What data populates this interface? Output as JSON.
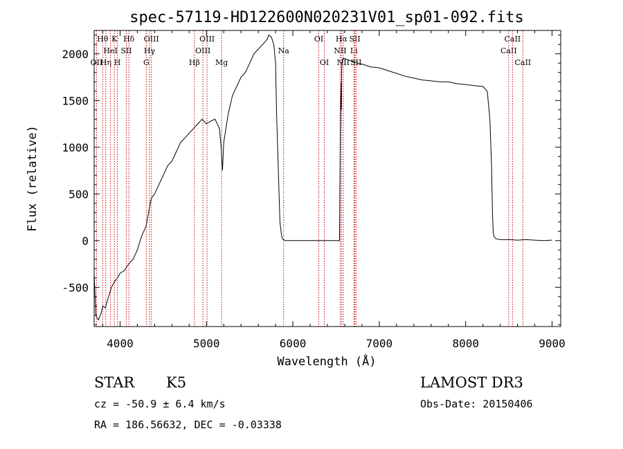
{
  "chart_data": {
    "type": "line",
    "title": "spec-57119-HD122600N020231V01_sp01-092.fits",
    "xlabel": "Wavelength (Å)",
    "ylabel": "Flux (relative)",
    "xlim": [
      3700,
      9100
    ],
    "ylim": [
      -920,
      2250
    ],
    "xticks": [
      4000,
      5000,
      6000,
      7000,
      8000,
      9000
    ],
    "yticks": [
      -500,
      0,
      500,
      1000,
      1500,
      2000
    ],
    "grid": false,
    "series": [
      {
        "x": [
          3700,
          3720,
          3750,
          3780,
          3800,
          3830,
          3860,
          3880,
          3900,
          3930,
          3950,
          3970,
          4000,
          4050,
          4100,
          4150,
          4200,
          4250,
          4300,
          4330,
          4360,
          4400,
          4450,
          4500,
          4550,
          4600,
          4650,
          4700,
          4750,
          4800,
          4850,
          4900,
          4950,
          5000,
          5050,
          5100,
          5150,
          5170,
          5185,
          5200,
          5250,
          5300,
          5350,
          5400,
          5450,
          5500,
          5550,
          5600,
          5650,
          5700,
          5720,
          5750,
          5780,
          5800,
          5810,
          5830,
          5850,
          5870,
          5880,
          5890,
          5900,
          5910,
          5950,
          6000,
          6100,
          6200,
          6300,
          6400,
          6500,
          6540,
          6550,
          6555,
          6560,
          6562,
          6565,
          6570,
          6580,
          6600,
          6650,
          6700,
          6750,
          6800,
          6900,
          7000,
          7100,
          7200,
          7300,
          7400,
          7500,
          7600,
          7700,
          7800,
          7900,
          8000,
          8100,
          8200,
          8250,
          8280,
          8300,
          8310,
          8320,
          8330,
          8340,
          8350,
          8400,
          8500,
          8600,
          8700,
          8800,
          8900,
          9000
        ],
        "values": [
          -350,
          -800,
          -850,
          -780,
          -700,
          -720,
          -620,
          -560,
          -500,
          -450,
          -420,
          -400,
          -350,
          -320,
          -250,
          -200,
          -100,
          50,
          150,
          300,
          450,
          500,
          600,
          700,
          800,
          850,
          950,
          1050,
          1100,
          1150,
          1200,
          1250,
          1300,
          1250,
          1280,
          1300,
          1200,
          1000,
          750,
          1050,
          1350,
          1550,
          1650,
          1750,
          1800,
          1900,
          2000,
          2050,
          2100,
          2150,
          2200,
          2180,
          2100,
          1900,
          1400,
          800,
          200,
          50,
          20,
          10,
          5,
          0,
          0,
          0,
          0,
          0,
          0,
          0,
          0,
          0,
          1200,
          1500,
          1700,
          1400,
          1850,
          1900,
          1950,
          1950,
          1930,
          1920,
          1900,
          1890,
          1860,
          1850,
          1820,
          1790,
          1760,
          1740,
          1720,
          1710,
          1700,
          1700,
          1680,
          1670,
          1660,
          1650,
          1600,
          1300,
          800,
          300,
          80,
          40,
          30,
          20,
          10,
          10,
          5,
          10,
          5,
          0,
          5
        ]
      }
    ],
    "line_markers": [
      {
        "x": 3727,
        "labels": [
          "OII"
        ],
        "row": 2
      },
      {
        "x": 3798,
        "labels": [
          "Hθ"
        ],
        "row": 0
      },
      {
        "x": 3835,
        "labels": [
          "Hη"
        ],
        "row": 2
      },
      {
        "x": 3889,
        "labels": [
          "HeI"
        ],
        "row": 1
      },
      {
        "x": 3934,
        "labels": [
          "K"
        ],
        "row": 0
      },
      {
        "x": 3969,
        "labels": [
          "H"
        ],
        "row": 2
      },
      {
        "x": 4072,
        "labels": [
          "SII"
        ],
        "row": 1
      },
      {
        "x": 4102,
        "labels": [
          "Hδ"
        ],
        "row": 0
      },
      {
        "x": 4304,
        "labels": [
          "G"
        ],
        "row": 2
      },
      {
        "x": 4341,
        "labels": [
          "Hγ"
        ],
        "row": 1
      },
      {
        "x": 4363,
        "labels": [
          "OIII"
        ],
        "row": 0
      },
      {
        "x": 4861,
        "labels": [
          "Hβ"
        ],
        "row": 2
      },
      {
        "x": 4959,
        "labels": [
          "OIII"
        ],
        "row": 1
      },
      {
        "x": 5007,
        "labels": [
          "OIII"
        ],
        "row": 0
      },
      {
        "x": 5175,
        "labels": [
          "Mg"
        ],
        "row": 2
      },
      {
        "x": 5893,
        "labels": [
          "Na"
        ],
        "row": 1
      },
      {
        "x": 6300,
        "labels": [
          "OI"
        ],
        "row": 0
      },
      {
        "x": 6364,
        "labels": [
          "OI"
        ],
        "row": 2
      },
      {
        "x": 6548,
        "labels": [
          "NII"
        ],
        "row": 1
      },
      {
        "x": 6563,
        "labels": [
          "Hα"
        ],
        "row": 0
      },
      {
        "x": 6583,
        "labels": [
          "NII"
        ],
        "row": 2
      },
      {
        "x": 6707,
        "labels": [
          "Li"
        ],
        "row": 1
      },
      {
        "x": 6717,
        "labels": [
          "SII"
        ],
        "row": 0
      },
      {
        "x": 6731,
        "labels": [
          "SII"
        ],
        "row": 2
      },
      {
        "x": 8498,
        "labels": [
          "CaII"
        ],
        "row": 1
      },
      {
        "x": 8542,
        "labels": [
          "CaII"
        ],
        "row": 0
      },
      {
        "x": 8662,
        "labels": [
          "CaII"
        ],
        "row": 2
      }
    ]
  },
  "info": {
    "class": "STAR",
    "subclass": "K5",
    "cz": "cz = -50.9 ± 6.4 km/s",
    "radec": "RA = 186.56632, DEC =  -0.03338",
    "survey": "LAMOST DR3",
    "obsdate": "Obs-Date: 20150406"
  },
  "colors": {
    "line_marker": "#c00000",
    "spectrum": "#000000"
  }
}
